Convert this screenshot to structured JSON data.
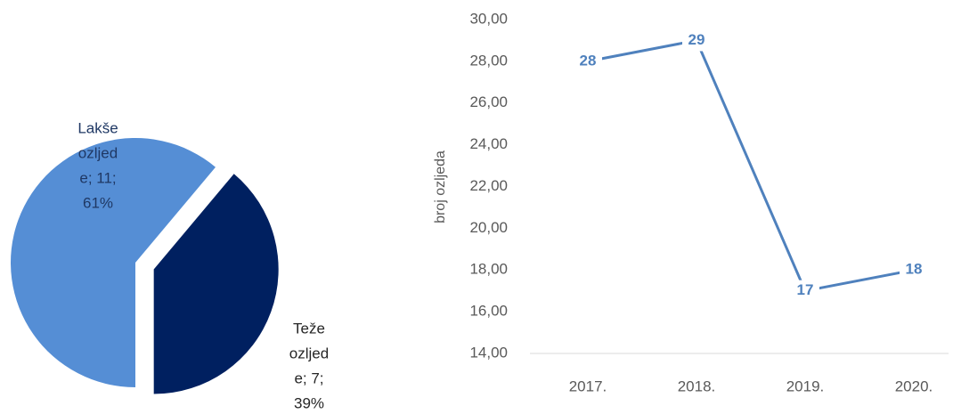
{
  "chart_data": [
    {
      "type": "pie",
      "categories": [
        "Lakše ozljede",
        "Teže ozljede"
      ],
      "values": [
        11,
        7
      ],
      "value_labels": [
        [
          "Lakše",
          "ozljed",
          "e; 11;",
          "61%"
        ],
        [
          "Teže",
          "ozljed",
          "e; 7;",
          "39%"
        ]
      ],
      "colors": [
        "#558ed5",
        "#002060"
      ]
    },
    {
      "type": "line",
      "ylabel": "broj ozljeda",
      "categories": [
        "2017.",
        "2018.",
        "2019.",
        "2020."
      ],
      "series": [
        {
          "name": "broj ozljeda",
          "color": "#4f81bd",
          "values": [
            28,
            29,
            17,
            18
          ]
        }
      ],
      "ylim": [
        14,
        30
      ],
      "yticks": [
        {
          "value": 14,
          "label": "14,00"
        },
        {
          "value": 16,
          "label": "16,00"
        },
        {
          "value": 18,
          "label": "18,00"
        },
        {
          "value": 20,
          "label": "20,00"
        },
        {
          "value": 22,
          "label": "22,00"
        },
        {
          "value": 24,
          "label": "24,00"
        },
        {
          "value": 26,
          "label": "26,00"
        },
        {
          "value": 28,
          "label": "28,00"
        },
        {
          "value": 30,
          "label": "30,00"
        }
      ]
    }
  ]
}
